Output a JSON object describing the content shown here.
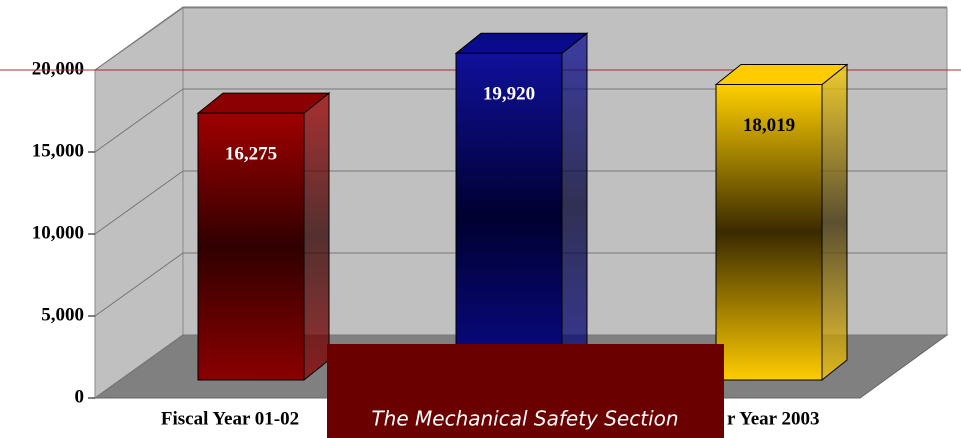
{
  "chart_data": {
    "type": "bar3d",
    "categories": [
      "Fiscal Year 01-02",
      null,
      "r Year 2003"
    ],
    "values": [
      16275,
      19920,
      18019
    ],
    "value_labels": [
      "16,275",
      "19,920",
      "18,019"
    ],
    "colors": [
      "#8b0000",
      "#0a0a8c",
      "#ffcc00"
    ],
    "ylim": [
      0,
      20000
    ],
    "yticks": [
      0,
      {
        "value": 5000,
        "label": "5,000"
      },
      {
        "value": 10000,
        "label": "10,000"
      },
      {
        "value": 15000,
        "label": "15,000"
      },
      {
        "value": 20000,
        "label": "20,000"
      }
    ],
    "grid": true,
    "annotation": "The Mechanical Safety Section"
  }
}
